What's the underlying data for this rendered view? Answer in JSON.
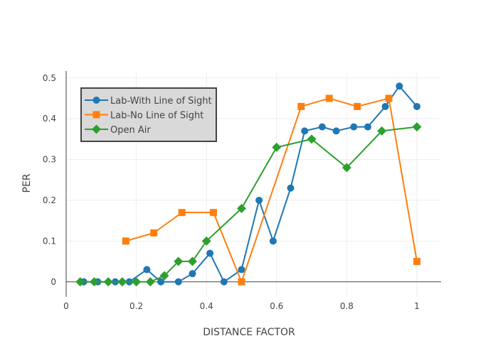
{
  "chart_data": {
    "type": "line",
    "title": "",
    "xlabel": "DISTANCE FACTOR",
    "ylabel": "PER",
    "xlim": [
      0,
      1.069
    ],
    "ylim": [
      -0.037,
      0.517
    ],
    "xticks": [
      0,
      0.2,
      0.4,
      0.6,
      0.8,
      1
    ],
    "xtick_labels": [
      "0",
      "0.2",
      "0.4",
      "0.6",
      "0.8",
      "1"
    ],
    "yticks": [
      0,
      0.1,
      0.2,
      0.3,
      0.4,
      0.5
    ],
    "ytick_labels": [
      "0",
      "0.1",
      "0.2",
      "0.3",
      "0.4",
      "0.5"
    ],
    "grid": true,
    "legend_position": "top-left",
    "series": [
      {
        "name": "Lab-With Line of Sight",
        "color": "#1f77b4",
        "marker": "circle",
        "x": [
          0.05,
          0.09,
          0.14,
          0.18,
          0.23,
          0.27,
          0.32,
          0.36,
          0.41,
          0.45,
          0.5,
          0.55,
          0.59,
          0.64,
          0.68,
          0.73,
          0.77,
          0.82,
          0.86,
          0.91,
          0.95,
          1.0
        ],
        "y": [
          0,
          0,
          0,
          0,
          0.03,
          0,
          0,
          0.02,
          0.07,
          0,
          0.03,
          0.2,
          0.1,
          0.23,
          0.37,
          0.38,
          0.37,
          0.38,
          0.38,
          0.43,
          0.48,
          0.43
        ]
      },
      {
        "name": "Lab-No Line of Sight",
        "color": "#ff7f0e",
        "marker": "square",
        "x": [
          0.17,
          0.25,
          0.33,
          0.42,
          0.5,
          0.67,
          0.75,
          0.83,
          0.92,
          1.0
        ],
        "y": [
          0.1,
          0.12,
          0.17,
          0.17,
          0,
          0.43,
          0.45,
          0.43,
          0.45,
          0.05
        ]
      },
      {
        "name": "Open Air",
        "color": "#2ca02c",
        "marker": "diamond",
        "x": [
          0.04,
          0.08,
          0.12,
          0.16,
          0.2,
          0.24,
          0.28,
          0.32,
          0.36,
          0.4,
          0.5,
          0.6,
          0.7,
          0.8,
          0.9,
          1.0
        ],
        "y": [
          0,
          0,
          0,
          0,
          0,
          0,
          0.015,
          0.05,
          0.05,
          0.1,
          0.18,
          0.33,
          0.35,
          0.28,
          0.37,
          0.38
        ]
      }
    ]
  }
}
